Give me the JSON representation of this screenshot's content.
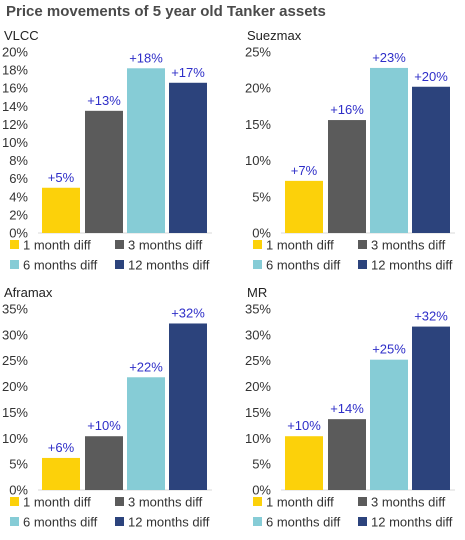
{
  "page_title": "Price movements of 5 year old Tanker assets",
  "colors": {
    "1 month diff": "#fcd10a",
    "3 months diff": "#5b5b5b",
    "6 months diff": "#86ccd6",
    "12 months diff": "#2c437c"
  },
  "chart_data": [
    {
      "type": "bar",
      "title": "VLCC",
      "categories": [
        "1 month diff",
        "3 months diff",
        "6 months diff",
        "12 months diff"
      ],
      "values": [
        5,
        13.5,
        18.2,
        16.6
      ],
      "data_labels": [
        "+5%",
        "+13%",
        "+18%",
        "+17%"
      ],
      "ylim": [
        0,
        20
      ],
      "ytick_labels": [
        "0%",
        "2%",
        "4%",
        "6%",
        "8%",
        "10%",
        "12%",
        "14%",
        "16%",
        "18%",
        "20%"
      ],
      "legend": [
        "1 month diff",
        "3 months diff",
        "6 months diff",
        "12 months diff"
      ],
      "legend_placement": "bottom"
    },
    {
      "type": "bar",
      "title": "Suezmax",
      "categories": [
        "1 month diff",
        "3 months diff",
        "6 months diff",
        "12 months diff"
      ],
      "values": [
        7.2,
        15.6,
        22.8,
        20.2
      ],
      "data_labels": [
        "+7%",
        "+16%",
        "+23%",
        "+20%"
      ],
      "ylim": [
        0,
        25
      ],
      "ytick_labels": [
        "0%",
        "5%",
        "10%",
        "15%",
        "20%",
        "25%"
      ],
      "legend": [
        "1 month diff",
        "3 months diff",
        "6 months diff",
        "12 months diff"
      ],
      "legend_placement": "bottom"
    },
    {
      "type": "bar",
      "title": "Aframax",
      "categories": [
        "1 month diff",
        "3 months diff",
        "6 months diff",
        "12 months diff"
      ],
      "values": [
        6.2,
        10.4,
        21.8,
        32.2
      ],
      "data_labels": [
        "+6%",
        "+10%",
        "+22%",
        "+32%"
      ],
      "ylim": [
        0,
        35
      ],
      "ytick_labels": [
        "0%",
        "5%",
        "10%",
        "15%",
        "20%",
        "25%",
        "30%",
        "35%"
      ],
      "legend": [
        "1 month diff",
        "3 months diff",
        "6 months diff",
        "12 months diff"
      ],
      "legend_placement": "bottom"
    },
    {
      "type": "bar",
      "title": "MR",
      "categories": [
        "1 month diff",
        "3 months diff",
        "6 months diff",
        "12 months diff"
      ],
      "values": [
        10.4,
        13.7,
        25.2,
        31.6
      ],
      "data_labels": [
        "+10%",
        "+14%",
        "+25%",
        "+32%"
      ],
      "ylim": [
        0,
        35
      ],
      "ytick_labels": [
        "0%",
        "5%",
        "10%",
        "15%",
        "20%",
        "25%",
        "30%",
        "35%"
      ],
      "legend": [
        "1 month diff",
        "3 months diff",
        "6 months diff",
        "12 months diff"
      ],
      "legend_placement": "bottom"
    }
  ]
}
